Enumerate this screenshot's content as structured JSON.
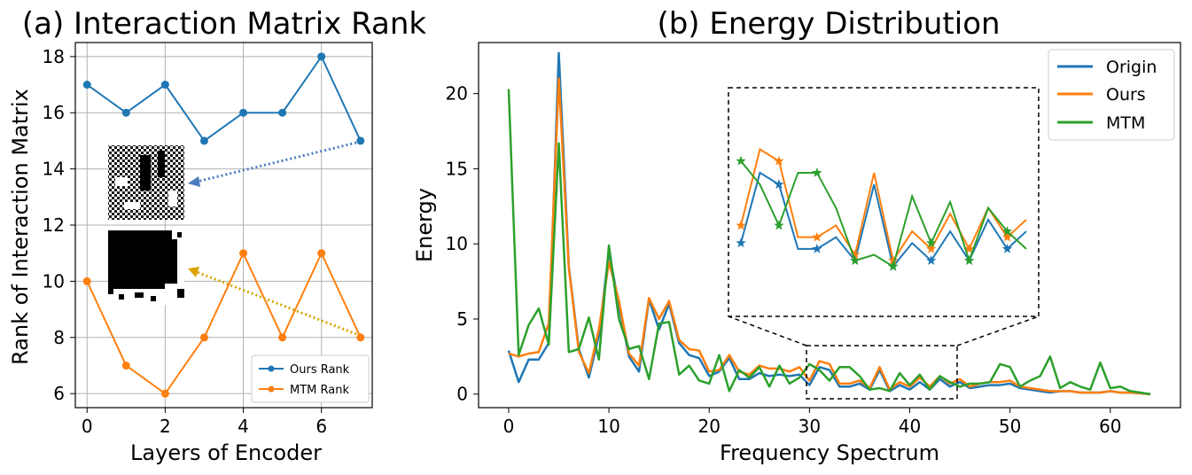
{
  "colors": {
    "origin": "#1f77b4",
    "ours": "#ff7f0e",
    "mtm": "#2ca02c",
    "ours_rank_arrow": "#4c7bbf",
    "mtm_rank_arrow": "#d9a400"
  },
  "chart_data": [
    {
      "type": "line",
      "title": "(a) Interaction Matrix Rank",
      "xlabel": "Layers of Encoder",
      "ylabel": "Rank of Interaction Matrix",
      "xlim": [
        -0.3,
        7.3
      ],
      "ylim": [
        5.5,
        18.5
      ],
      "xticks": [
        0,
        2,
        4,
        6
      ],
      "yticks": [
        6,
        8,
        10,
        12,
        14,
        16,
        18
      ],
      "grid": true,
      "legend_position": "lower-right",
      "x": [
        0,
        1,
        2,
        3,
        4,
        5,
        6,
        7
      ],
      "series": [
        {
          "name": "Ours Rank",
          "color_key": "origin",
          "values": [
            17,
            16,
            17,
            15,
            16,
            16,
            18,
            15
          ]
        },
        {
          "name": "MTM Rank",
          "color_key": "ours",
          "values": [
            10,
            7,
            6,
            8,
            11,
            8,
            11,
            8
          ]
        }
      ]
    },
    {
      "type": "line",
      "title": "(b) Energy Distribution",
      "xlabel": "Frequency Spectrum",
      "ylabel": "Energy",
      "xlim": [
        -3,
        67
      ],
      "ylim": [
        -0.9,
        23.4
      ],
      "xticks": [
        0,
        10,
        20,
        30,
        40,
        50,
        60
      ],
      "yticks": [
        0,
        5,
        10,
        15,
        20
      ],
      "grid": false,
      "legend_position": "top-right",
      "inset_zoom_x": [
        30,
        45
      ],
      "inset_zoom_y": [
        -0.5,
        3.1
      ],
      "series": [
        {
          "name": "Origin",
          "color_key": "origin",
          "values": [
            2.9,
            0.8,
            2.3,
            2.3,
            3.4,
            22.7,
            8.5,
            3.0,
            1.1,
            3.9,
            9.5,
            5.9,
            2.5,
            1.5,
            6.3,
            4.3,
            6.0,
            3.4,
            2.6,
            2.4,
            1.2,
            1.5,
            2.4,
            1.0,
            1.0,
            1.4,
            1.2,
            1.3,
            1.2,
            1.3,
            0.6,
            1.8,
            1.6,
            0.5,
            0.5,
            0.7,
            0.3,
            1.6,
            0.2,
            0.6,
            0.3,
            0.8,
            0.3,
            1.0,
            0.5,
            0.8,
            0.4,
            0.5,
            0.6,
            0.6,
            0.7,
            0.4,
            0.3,
            0.2,
            0.1,
            0.2,
            0.2,
            0.1,
            0.1,
            0.1,
            0.2,
            0.1,
            0.1,
            0.05,
            0.0
          ]
        },
        {
          "name": "Ours",
          "color_key": "ours",
          "values": [
            2.7,
            2.5,
            2.7,
            2.8,
            4.7,
            21.0,
            8.4,
            2.8,
            1.4,
            4.3,
            8.8,
            6.2,
            2.7,
            1.9,
            6.4,
            5.0,
            6.2,
            3.6,
            3.0,
            2.9,
            1.5,
            1.6,
            2.6,
            1.5,
            1.3,
            1.9,
            1.7,
            1.7,
            1.5,
            1.8,
            0.9,
            2.2,
            2.0,
            0.7,
            0.7,
            0.9,
            0.4,
            1.8,
            0.3,
            0.8,
            0.5,
            1.1,
            0.5,
            1.2,
            0.7,
            1.0,
            0.5,
            0.7,
            0.8,
            0.8,
            0.9,
            0.5,
            0.4,
            0.3,
            0.2,
            0.2,
            0.2,
            0.1,
            0.1,
            0.1,
            0.2,
            0.1,
            0.1,
            0.05,
            0.0
          ]
        },
        {
          "name": "MTM",
          "color_key": "mtm",
          "values": [
            20.3,
            2.6,
            4.6,
            5.7,
            3.3,
            16.7,
            2.8,
            3.0,
            5.1,
            2.3,
            9.9,
            5.0,
            3.0,
            3.2,
            1.0,
            4.7,
            4.8,
            1.3,
            1.9,
            0.9,
            0.7,
            2.6,
            0.2,
            1.6,
            1.1,
            1.8,
            0.5,
            1.9,
            0.7,
            1.1,
            2.0,
            1.6,
            0.9,
            1.8,
            1.8,
            1.2,
            0.3,
            0.4,
            0.2,
            1.4,
            0.6,
            1.3,
            0.3,
            1.2,
            0.8,
            0.5,
            0.7,
            0.7,
            0.8,
            2.0,
            1.8,
            0.5,
            0.9,
            1.2,
            2.5,
            0.4,
            0.8,
            0.5,
            0.3,
            2.1,
            0.4,
            0.5,
            0.2,
            0.1,
            0.0
          ]
        }
      ]
    }
  ]
}
